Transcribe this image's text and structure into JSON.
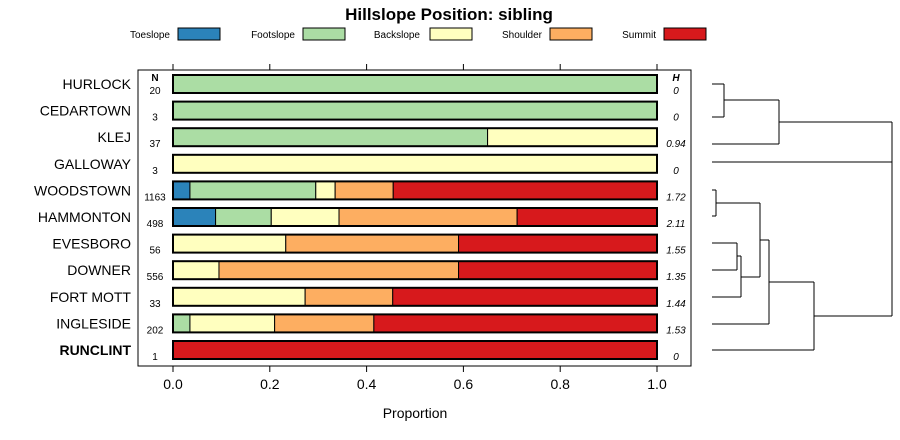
{
  "chart_data": {
    "type": "bar",
    "title": "Hillslope Position: sibling",
    "xlabel": "Proportion",
    "xlim": [
      0,
      1
    ],
    "xticks": [
      "0.0",
      "0.2",
      "0.4",
      "0.6",
      "0.8",
      "1.0"
    ],
    "n_header": "N",
    "h_header": "H",
    "legend": [
      {
        "name": "Toeslope",
        "color": "#2b83ba"
      },
      {
        "name": "Footslope",
        "color": "#abdda4"
      },
      {
        "name": "Backslope",
        "color": "#ffffbf"
      },
      {
        "name": "Shoulder",
        "color": "#fdae61"
      },
      {
        "name": "Summit",
        "color": "#d7191c"
      }
    ],
    "categories": [
      "HURLOCK",
      "CEDARTOWN",
      "KLEJ",
      "GALLOWAY",
      "WOODSTOWN",
      "HAMMONTON",
      "EVESBORO",
      "DOWNER",
      "FORT MOTT",
      "INGLESIDE",
      "RUNCLINT"
    ],
    "n": [
      "20",
      "3",
      "37",
      "3",
      "1163",
      "498",
      "56",
      "556",
      "33",
      "202",
      "1"
    ],
    "h": [
      "0",
      "0",
      "0.94",
      "0",
      "1.72",
      "2.11",
      "1.55",
      "1.35",
      "1.44",
      "1.53",
      "0"
    ],
    "bold_category": "RUNCLINT",
    "series": [
      {
        "name": "Toeslope",
        "values": [
          0,
          0,
          0,
          0,
          0.035,
          0.088,
          0,
          0,
          0,
          0,
          0
        ]
      },
      {
        "name": "Footslope",
        "values": [
          1,
          1,
          0.65,
          0,
          0.26,
          0.115,
          0,
          0,
          0,
          0.035,
          0
        ]
      },
      {
        "name": "Backslope",
        "values": [
          0,
          0,
          0.35,
          1,
          0.04,
          0.14,
          0.233,
          0.095,
          0.273,
          0.175,
          0
        ]
      },
      {
        "name": "Shoulder",
        "values": [
          0,
          0,
          0,
          0,
          0.12,
          0.368,
          0.357,
          0.495,
          0.181,
          0.205,
          0
        ]
      },
      {
        "name": "Summit",
        "values": [
          0,
          0,
          0,
          0,
          0.545,
          0.289,
          0.41,
          0.41,
          0.546,
          0.585,
          1
        ]
      }
    ],
    "dendrogram": "hierarchical clustering of the 11 soil series"
  }
}
